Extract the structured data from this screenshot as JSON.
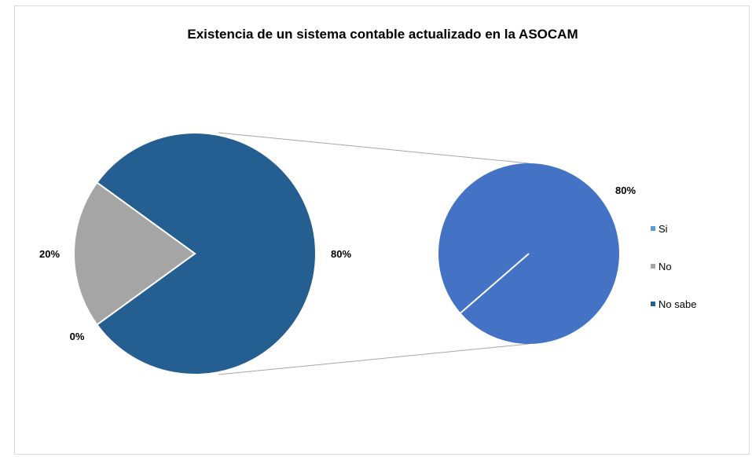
{
  "chart_data": {
    "type": "pie",
    "subtype": "pie-of-pie",
    "title": "Existencia de un sistema contable actualizado en la ASOCAM",
    "categories": [
      "Si",
      "No",
      "No sabe"
    ],
    "values": [
      0,
      20,
      80
    ],
    "value_labels": [
      "0%",
      "20%",
      "80%"
    ],
    "secondary_label": "80%",
    "colors": {
      "Si": "#5b9bd5",
      "No": "#a5a5a5",
      "No sabe": "#255e91",
      "secondary": "#4472c4"
    },
    "legend_position": "right"
  }
}
